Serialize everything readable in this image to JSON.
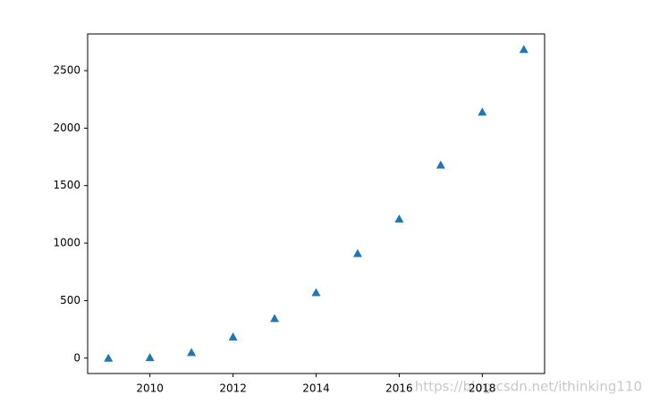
{
  "chart_data": {
    "type": "scatter",
    "marker": "triangle",
    "color": "#1f77b4",
    "x": [
      2009,
      2010,
      2011,
      2012,
      2013,
      2014,
      2015,
      2016,
      2017,
      2018,
      2019
    ],
    "values": [
      0,
      5,
      50,
      185,
      345,
      570,
      910,
      1210,
      1680,
      2140,
      2685
    ],
    "xlim": [
      2008.5,
      2019.5
    ],
    "xticks": [
      2010,
      2012,
      2014,
      2016,
      2018
    ],
    "ylim": [
      -134,
      2819
    ],
    "yticks": [
      0,
      500,
      1000,
      1500,
      2000,
      2500
    ],
    "grid": false,
    "watermark": "https://blog.csdn.net/ithinking110"
  }
}
